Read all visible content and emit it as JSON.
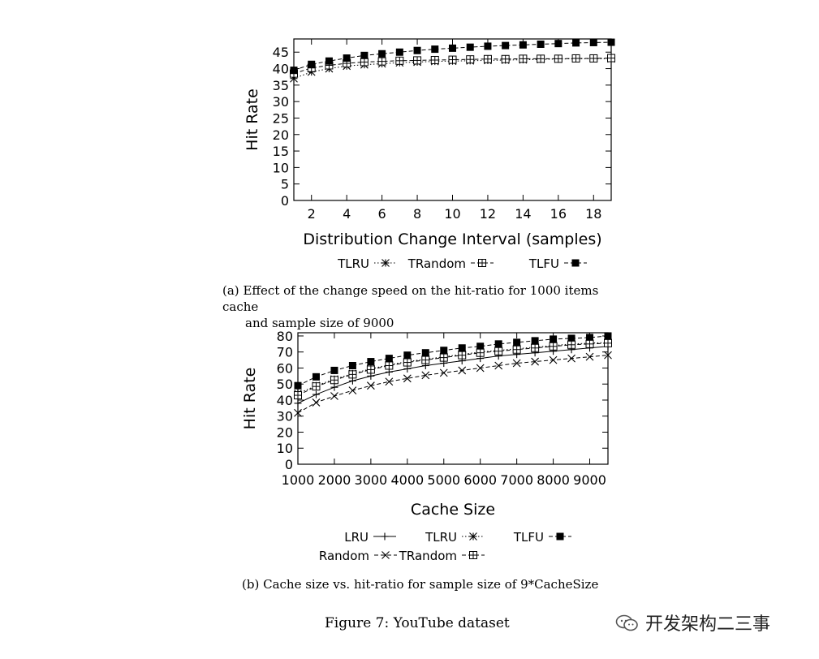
{
  "figure_caption": "Figure 7: YouTube dataset",
  "watermark": "开发架构二三事",
  "chart_data": [
    {
      "type": "line",
      "caption_label": "(a)",
      "caption_line1": "Effect of the change speed on the hit-ratio for 1000 items cache",
      "caption_line2": "and sample size of 9000",
      "xlabel": "Distribution Change Interval (samples)",
      "ylabel": "Hit Rate",
      "xlim": [
        1,
        19
      ],
      "ylim": [
        0,
        49
      ],
      "x_ticks": [
        2,
        4,
        6,
        8,
        10,
        12,
        14,
        16,
        18
      ],
      "y_ticks": [
        0,
        5,
        10,
        15,
        20,
        25,
        30,
        35,
        40,
        45
      ],
      "grid": false,
      "legend_position": "bottom",
      "x": [
        1,
        2,
        3,
        4,
        5,
        6,
        7,
        8,
        9,
        10,
        11,
        12,
        13,
        14,
        15,
        16,
        17,
        18,
        19
      ],
      "series": [
        {
          "name": "TLRU",
          "marker": "asterisk",
          "line": "dotted",
          "values": [
            37,
            39,
            40,
            40.8,
            41.2,
            41.5,
            41.8,
            42,
            42.2,
            42.3,
            42.4,
            42.5,
            42.6,
            42.7,
            42.8,
            42.9,
            43,
            43,
            43
          ]
        },
        {
          "name": "TRandom",
          "marker": "square-open",
          "line": "dashed",
          "values": [
            38.5,
            40.2,
            41,
            41.6,
            42,
            42.2,
            42.4,
            42.5,
            42.6,
            42.7,
            42.8,
            42.9,
            42.9,
            43,
            43,
            43,
            43.1,
            43.1,
            43.2
          ]
        },
        {
          "name": "TLFU",
          "marker": "square-filled",
          "line": "dashed",
          "values": [
            39.5,
            41.3,
            42.3,
            43.2,
            44,
            44.5,
            45,
            45.5,
            45.9,
            46.2,
            46.5,
            46.8,
            47,
            47.2,
            47.4,
            47.6,
            47.8,
            47.9,
            48
          ]
        }
      ]
    },
    {
      "type": "line",
      "caption_label": "(b)",
      "caption_line1": "Cache size vs. hit-ratio for sample size of 9*CacheSize",
      "xlabel": "Cache Size",
      "ylabel": "Hit Rate",
      "xlim": [
        1000,
        9500
      ],
      "ylim": [
        0,
        82
      ],
      "x_ticks": [
        1000,
        2000,
        3000,
        4000,
        5000,
        6000,
        7000,
        8000,
        9000
      ],
      "y_ticks": [
        0,
        10,
        20,
        30,
        40,
        50,
        60,
        70,
        80
      ],
      "grid": false,
      "legend_position": "bottom",
      "x": [
        1000,
        1500,
        2000,
        2500,
        3000,
        3500,
        4000,
        4500,
        5000,
        5500,
        6000,
        6500,
        7000,
        7500,
        8000,
        8500,
        9000,
        9500
      ],
      "series": [
        {
          "name": "LRU",
          "marker": "plus",
          "line": "solid",
          "values": [
            38,
            43.5,
            48,
            52,
            55,
            57.5,
            59.5,
            61.5,
            63,
            64.5,
            66,
            67.5,
            68.5,
            69.5,
            70.5,
            71.5,
            72.5,
            73.5
          ]
        },
        {
          "name": "TLRU",
          "marker": "asterisk",
          "line": "dotted",
          "values": [
            44,
            49,
            53,
            56.5,
            59.5,
            62,
            64,
            65.5,
            67,
            68.5,
            70,
            71,
            72,
            73,
            74,
            75,
            75.5,
            76
          ]
        },
        {
          "name": "TLFU",
          "marker": "square-filled",
          "line": "dashed",
          "values": [
            49,
            54.5,
            58.5,
            61.5,
            64,
            66,
            68,
            69.5,
            71,
            72.5,
            73.5,
            75,
            76,
            77,
            78,
            78.5,
            79,
            80
          ]
        },
        {
          "name": "Random",
          "marker": "x",
          "line": "dashed",
          "values": [
            32,
            38.5,
            42.5,
            46,
            49,
            51.5,
            53.5,
            55.5,
            57,
            58.5,
            60,
            61.5,
            63,
            64,
            65,
            66,
            67,
            68
          ]
        },
        {
          "name": "TRandom",
          "marker": "square-open",
          "line": "dashed",
          "values": [
            43,
            48.5,
            52.5,
            56,
            59,
            61.5,
            63.5,
            65,
            66.5,
            68,
            69.5,
            70.5,
            71.5,
            72.5,
            73.5,
            74.5,
            75,
            75.5
          ]
        }
      ]
    }
  ]
}
